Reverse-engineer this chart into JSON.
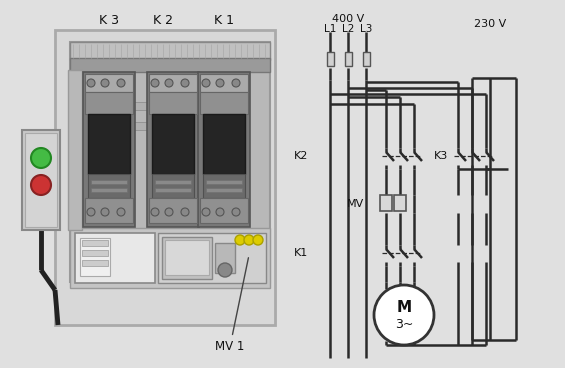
{
  "bg_color": "#e0e0e0",
  "line_color": "#2a2a2a",
  "voltage_400": "400 V",
  "voltage_230": "230 V",
  "label_L1": "L1",
  "label_L2": "L2",
  "label_L3": "L3",
  "label_K1": "K1",
  "label_K2": "K2",
  "label_K3": "K3",
  "label_MV": "MV",
  "label_MV1": "MV 1",
  "motor_label": "M",
  "motor_sublabel": "3~",
  "contactor_labels": [
    "K 3",
    "K 2",
    "K 1"
  ],
  "panel_bg": "#c8c8c8",
  "panel_edge": "#888888",
  "contactor_body": "#787878",
  "contactor_dark": "#4a4a4a",
  "contactor_mid": "#6a6a6a",
  "contactor_light": "#9a9a9a",
  "enclosure_bg": "#d4d4d4",
  "btn_green": "#44bb44",
  "btn_red": "#cc3333",
  "yellow_terminal": "#ddcc00",
  "wire_color": "#333333",
  "diagram_line": "#2a2a2a",
  "diagram_lw": 1.8,
  "fuse_color": "#aaaaaa",
  "mv_color": "#aaaaaa"
}
